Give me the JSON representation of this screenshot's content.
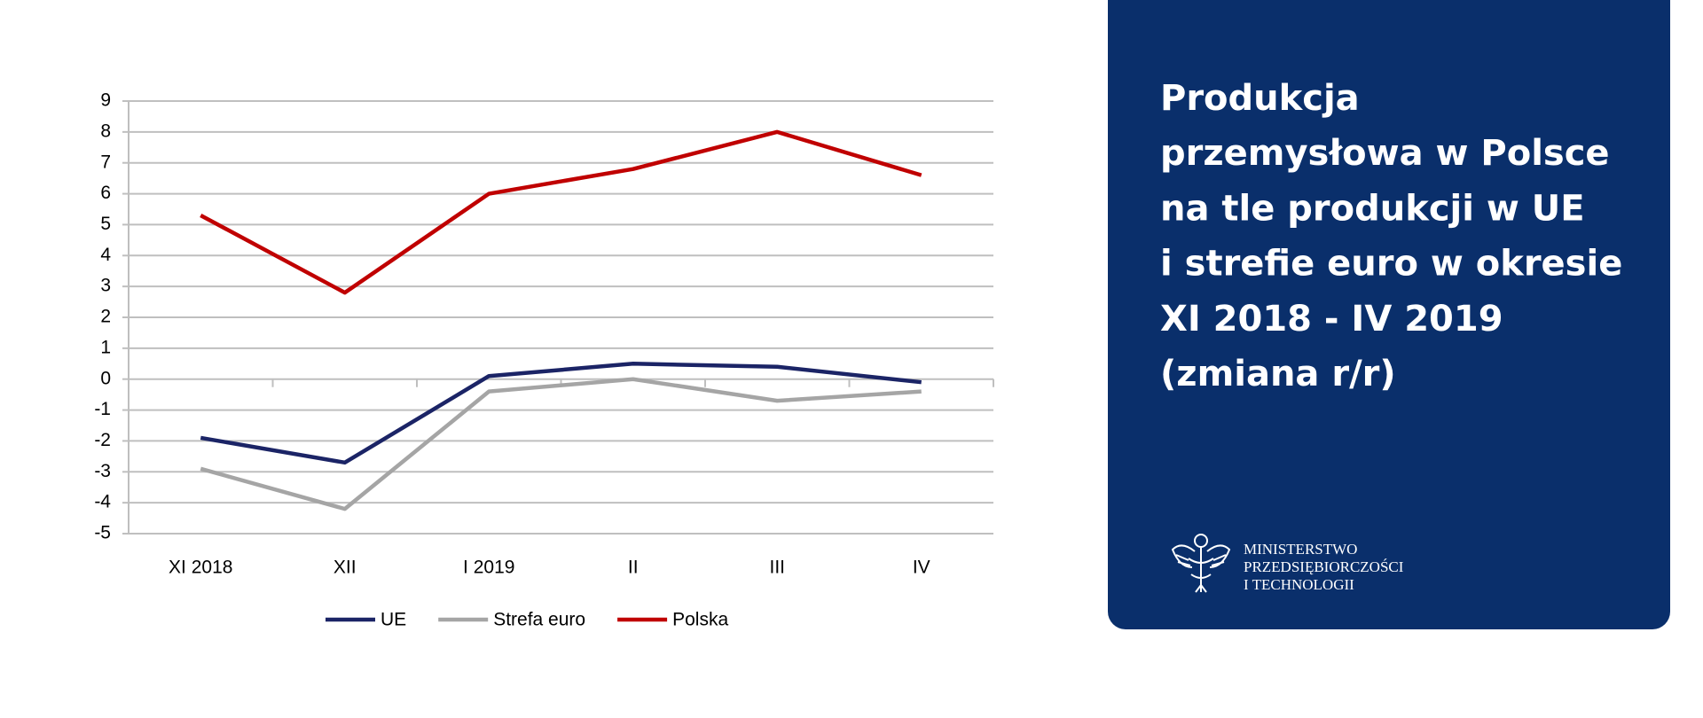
{
  "chart_data": {
    "type": "line",
    "title": [
      "Produkcja",
      "przemysłowa w Polsce",
      "na tle produkcji w UE",
      "i strefie euro w okresie",
      "XI 2018 - IV 2019",
      "(zmiana r/r)"
    ],
    "categories": [
      "XI 2018",
      "XII",
      "I 2019",
      "II",
      "III",
      "IV"
    ],
    "series": [
      {
        "name": "UE",
        "color": "#1b2466",
        "values": [
          -1.9,
          -2.7,
          0.1,
          0.5,
          0.4,
          -0.1
        ]
      },
      {
        "name": "Strefa euro",
        "color": "#a5a5a5",
        "values": [
          -2.9,
          -4.2,
          -0.4,
          0.0,
          -0.7,
          -0.4
        ]
      },
      {
        "name": "Polska",
        "color": "#c00000",
        "values": [
          5.3,
          2.8,
          6.0,
          6.8,
          8.0,
          6.6
        ]
      }
    ],
    "ylim": [
      -5,
      9
    ],
    "yticks": [
      -5,
      -4,
      -3,
      -2,
      -1,
      0,
      1,
      2,
      3,
      4,
      5,
      6,
      7,
      8,
      9
    ],
    "grid": true,
    "legend": "bottom"
  },
  "branding": {
    "lines": [
      "MINISTERSTWO",
      "PRZEDSIĘBIORCZOŚCI",
      "I TECHNOLOGII"
    ]
  }
}
